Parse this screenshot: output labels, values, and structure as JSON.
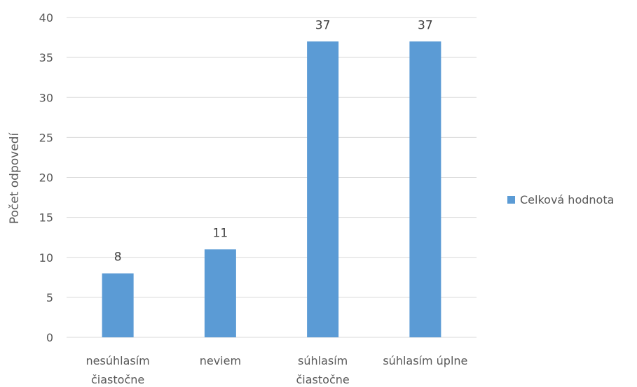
{
  "chart_data": {
    "type": "bar",
    "categories": [
      [
        "nesúhlasím",
        "čiastočne"
      ],
      [
        "neviem"
      ],
      [
        "súhlasím",
        "čiastočne"
      ],
      [
        "súhlasím úplne"
      ]
    ],
    "series": [
      {
        "name": "Celková hodnota",
        "values": [
          8,
          11,
          37,
          37
        ],
        "color": "#5b9bd5"
      }
    ],
    "title": "",
    "xlabel": "",
    "ylabel": "Počet odpovedí",
    "ylim": [
      0,
      40
    ],
    "yticks": [
      0,
      5,
      10,
      15,
      20,
      25,
      30,
      35,
      40
    ],
    "grid": true,
    "data_labels": true,
    "legend": {
      "position": "right"
    }
  }
}
